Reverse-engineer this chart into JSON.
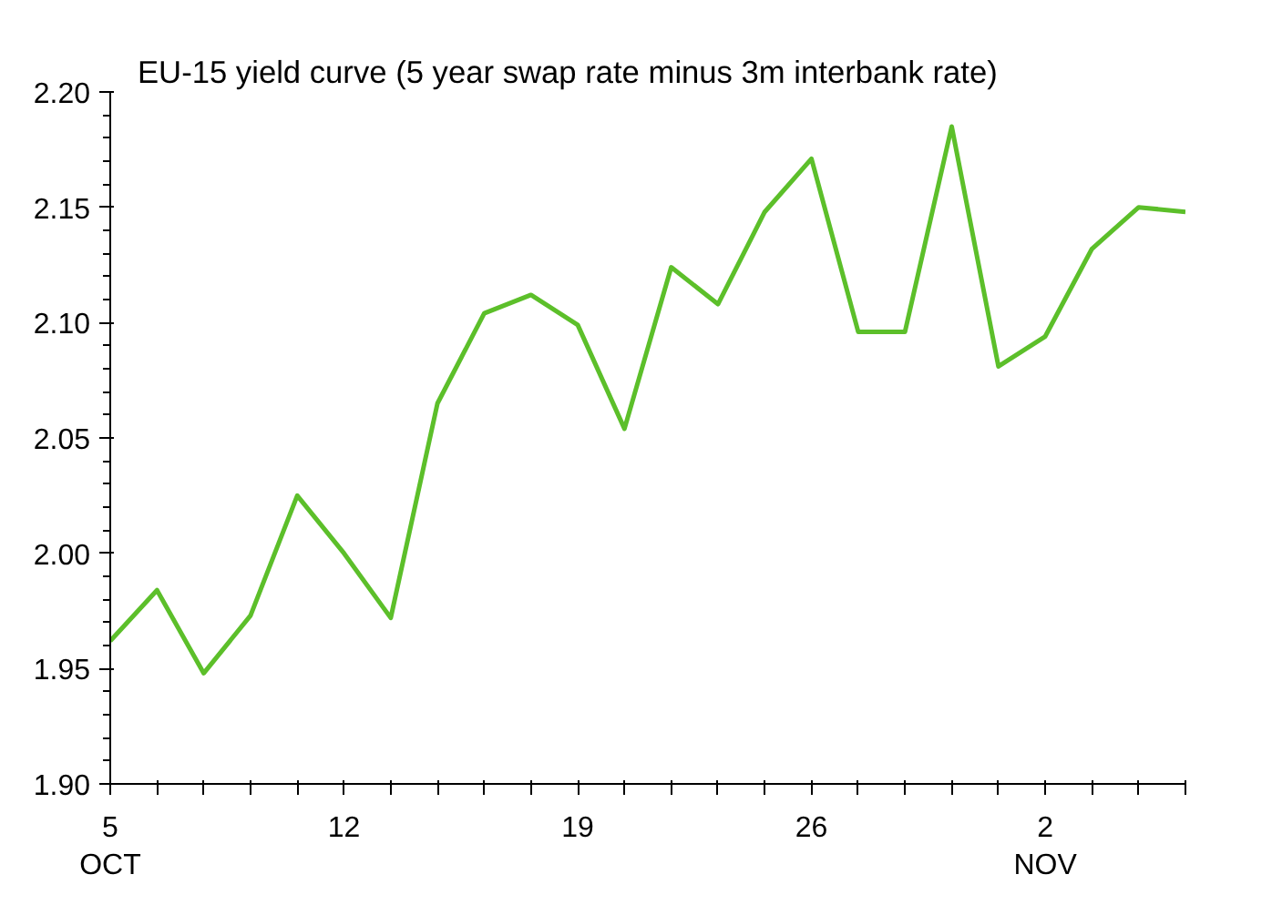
{
  "chart_data": {
    "type": "line",
    "title": "EU-15 yield curve (5 year swap rate minus 3m interbank rate)",
    "categories": [
      "5\nOCT",
      null,
      null,
      null,
      null,
      "12",
      null,
      null,
      null,
      null,
      "19",
      null,
      null,
      null,
      null,
      "26",
      null,
      null,
      null,
      null,
      "2\nNOV",
      null,
      null,
      null
    ],
    "series": [
      {
        "color": "#5cbf2a",
        "values": [
          1.962,
          1.984,
          1.948,
          1.973,
          2.025,
          2.0,
          1.972,
          2.065,
          2.104,
          2.112,
          2.099,
          2.054,
          2.124,
          2.108,
          2.148,
          2.171,
          2.096,
          2.096,
          2.185,
          2.081,
          2.094,
          2.132,
          2.15,
          2.148
        ]
      }
    ],
    "ylim": [
      1.9,
      2.2
    ],
    "yticks": [
      {
        "value": 1.9,
        "label": "1.90"
      },
      {
        "value": 1.95,
        "label": "1.95"
      },
      {
        "value": 2.0,
        "label": "2.00"
      },
      {
        "value": 2.05,
        "label": "2.05"
      },
      {
        "value": 2.1,
        "label": "2.10"
      },
      {
        "value": 2.15,
        "label": "2.15"
      },
      {
        "value": 2.2,
        "label": "2.20"
      }
    ],
    "grid": false,
    "marker": "none",
    "line_style": "solid"
  }
}
